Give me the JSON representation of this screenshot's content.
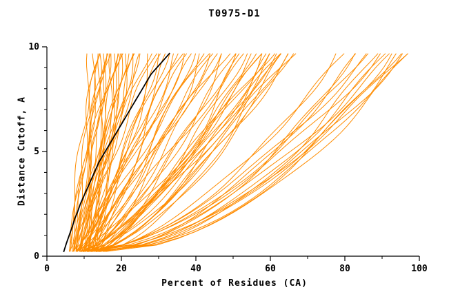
{
  "chart_data": {
    "type": "line",
    "title": "T0975-D1",
    "xlabel": "Percent of Residues (CA)",
    "ylabel": "Distance Cutoff, A",
    "xlim": [
      0,
      100
    ],
    "ylim": [
      0,
      10
    ],
    "x_major_ticks": [
      0,
      20,
      40,
      60,
      80,
      100
    ],
    "x_minor_ticks": [
      10,
      30,
      50,
      70,
      90
    ],
    "y_major_ticks": [
      0,
      5,
      10
    ],
    "y_minor_ticks": [
      1,
      2,
      3,
      4,
      6,
      7,
      8,
      9
    ],
    "grid": false,
    "legend": "none",
    "model_color": "#ff8c00",
    "highlight_color": "#000000",
    "highlight_curve": {
      "name": "selected-model",
      "points": [
        [
          4.5,
          0.2
        ],
        [
          5.2,
          0.6
        ],
        [
          6,
          1.0
        ],
        [
          6.8,
          1.4
        ],
        [
          7.5,
          1.8
        ],
        [
          8.2,
          2.1
        ],
        [
          9,
          2.5
        ],
        [
          10,
          2.9
        ],
        [
          11,
          3.3
        ],
        [
          12,
          3.7
        ],
        [
          13,
          4.1
        ],
        [
          14,
          4.5
        ],
        [
          15,
          4.8
        ],
        [
          16,
          5.1
        ],
        [
          17,
          5.4
        ],
        [
          18,
          5.7
        ],
        [
          19,
          6.0
        ],
        [
          20,
          6.3
        ],
        [
          21,
          6.6
        ],
        [
          22,
          6.9
        ],
        [
          23,
          7.2
        ],
        [
          24,
          7.5
        ],
        [
          25,
          7.8
        ],
        [
          26,
          8.1
        ],
        [
          27,
          8.4
        ],
        [
          28,
          8.7
        ],
        [
          29,
          8.9
        ],
        [
          30,
          9.1
        ],
        [
          31,
          9.3
        ],
        [
          32,
          9.5
        ],
        [
          33,
          9.7
        ]
      ]
    },
    "model_curves": [
      [
        6,
        12,
        1.1
      ],
      [
        7,
        13,
        0.95
      ],
      [
        8,
        13,
        1.2
      ],
      [
        6,
        14,
        1.0
      ],
      [
        9,
        14,
        0.85
      ],
      [
        7,
        15,
        1.15
      ],
      [
        8,
        15,
        0.9
      ],
      [
        10,
        15,
        1.05
      ],
      [
        6,
        16,
        1.2
      ],
      [
        9,
        16,
        0.95
      ],
      [
        11,
        16,
        0.8
      ],
      [
        7,
        17,
        1.1
      ],
      [
        10,
        17,
        0.9
      ],
      [
        8,
        18,
        1.0
      ],
      [
        12,
        18,
        0.85
      ],
      [
        9,
        19,
        1.15
      ],
      [
        11,
        19,
        0.95
      ],
      [
        7,
        20,
        1.05
      ],
      [
        10,
        20,
        0.8
      ],
      [
        13,
        20,
        1.2
      ],
      [
        8,
        21,
        0.9
      ],
      [
        11,
        21,
        1.1
      ],
      [
        9,
        22,
        0.95
      ],
      [
        12,
        22,
        0.85
      ],
      [
        10,
        23,
        1.05
      ],
      [
        13,
        23,
        1.15
      ],
      [
        8,
        24,
        0.9
      ],
      [
        11,
        24,
        1.0
      ],
      [
        6,
        26,
        0.95
      ],
      [
        9,
        27,
        1.1
      ],
      [
        12,
        28,
        0.8
      ],
      [
        7,
        29,
        1.0
      ],
      [
        10,
        30,
        0.9
      ],
      [
        13,
        31,
        1.15
      ],
      [
        8,
        32,
        0.85
      ],
      [
        11,
        33,
        1.05
      ],
      [
        14,
        34,
        0.95
      ],
      [
        7,
        35,
        0.8
      ],
      [
        10,
        36,
        1.1
      ],
      [
        12,
        37,
        0.9
      ],
      [
        9,
        38,
        1.0
      ],
      [
        13,
        39,
        0.85
      ],
      [
        8,
        40,
        1.1
      ],
      [
        11,
        41,
        0.95
      ],
      [
        14,
        42,
        0.8
      ],
      [
        9,
        43,
        1.05
      ],
      [
        12,
        44,
        0.9
      ],
      [
        10,
        45,
        1.0
      ],
      [
        13,
        46,
        0.85
      ],
      [
        8,
        47,
        0.95
      ],
      [
        11,
        48,
        1.1
      ],
      [
        14,
        48,
        0.75
      ],
      [
        9,
        50,
        0.7
      ],
      [
        12,
        51,
        0.85
      ],
      [
        10,
        52,
        0.6
      ],
      [
        14,
        53,
        0.75
      ],
      [
        8,
        54,
        0.9
      ],
      [
        11,
        55,
        0.65
      ],
      [
        13,
        56,
        0.8
      ],
      [
        9,
        57,
        0.7
      ],
      [
        12,
        58,
        0.6
      ],
      [
        15,
        58,
        0.85
      ],
      [
        10,
        59,
        0.75
      ],
      [
        13,
        60,
        0.65
      ],
      [
        8,
        60,
        0.8
      ],
      [
        11,
        61,
        0.7
      ],
      [
        14,
        62,
        0.6
      ],
      [
        9,
        62,
        0.75
      ],
      [
        12,
        63,
        0.85
      ],
      [
        10,
        64,
        0.65
      ],
      [
        13,
        64,
        0.7
      ],
      [
        11,
        65,
        0.6
      ],
      [
        14,
        66,
        0.75
      ],
      [
        9,
        66,
        0.8
      ],
      [
        10,
        78,
        0.55
      ],
      [
        13,
        80,
        0.65
      ],
      [
        11,
        82,
        0.5
      ],
      [
        15,
        84,
        0.6
      ],
      [
        9,
        85,
        0.55
      ],
      [
        12,
        87,
        0.65
      ],
      [
        14,
        88,
        0.5
      ],
      [
        10,
        90,
        0.6
      ],
      [
        13,
        91,
        0.55
      ],
      [
        16,
        92,
        0.5
      ],
      [
        11,
        93,
        0.6
      ],
      [
        14,
        94,
        0.55
      ],
      [
        12,
        95,
        0.5
      ],
      [
        15,
        96,
        0.6
      ],
      [
        10,
        96,
        0.55
      ],
      [
        13,
        97,
        0.5
      ]
    ]
  }
}
